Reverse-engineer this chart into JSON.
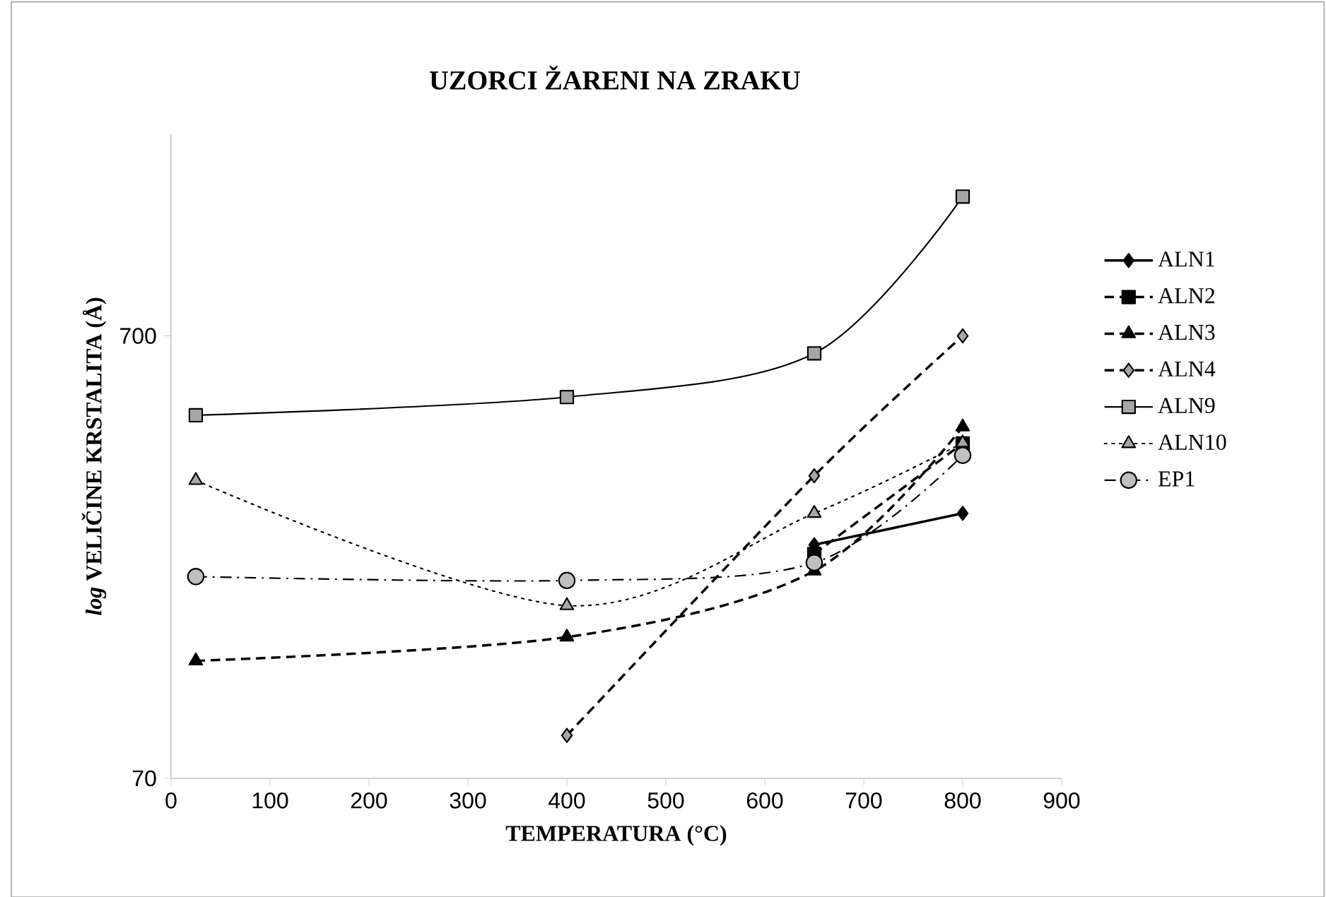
{
  "chart_data": {
    "type": "line",
    "title": "UZORCI ŽARENI NA ZRAKU",
    "xlabel": "TEMPERATURA (°C)",
    "ylabel": "*log* VELIČINE KRSTALITA (Å)",
    "xlim": [
      0,
      900
    ],
    "xticks": [
      0,
      100,
      200,
      300,
      400,
      500,
      600,
      700,
      800,
      900
    ],
    "ylim": [
      70,
      2000
    ],
    "yticks": [
      70,
      700
    ],
    "log": "y",
    "grid": false,
    "legend": "right",
    "series": [
      {
        "name": "ALN1",
        "color": "#000000",
        "marker": "diamond",
        "line_style": "solid",
        "x": [
          650,
          800
        ],
        "values": [
          236,
          278
        ]
      },
      {
        "name": "ALN2",
        "color": "#000000",
        "marker": "square",
        "line_style": "dashed",
        "x": [
          650,
          800
        ],
        "values": [
          225,
          400
        ]
      },
      {
        "name": "ALN3",
        "color": "#000000",
        "marker": "triangle",
        "line_style": "dashed",
        "x": [
          25,
          400,
          650,
          800
        ],
        "values": [
          129,
          146,
          206,
          436
        ]
      },
      {
        "name": "ALN4",
        "color": "#a6a6a6",
        "marker": "diamond",
        "line_style": "dashed",
        "x": [
          400,
          650,
          800
        ],
        "values": [
          87.5,
          338,
          700
        ]
      },
      {
        "name": "ALN9",
        "color": "#a6a6a6",
        "marker": "square",
        "line_style": "solid",
        "x": [
          25,
          400,
          650,
          800
        ],
        "values": [
          463,
          509,
          639,
          1445
        ]
      },
      {
        "name": "ALN10",
        "color": "#a6a6a6",
        "marker": "triangle",
        "line_style": "dotted",
        "x": [
          25,
          400,
          650,
          800
        ],
        "values": [
          330,
          172,
          278,
          401
        ]
      },
      {
        "name": "EP1",
        "color": "#bfbfbf",
        "marker": "circle",
        "line_style": "dashdot",
        "x": [
          25,
          400,
          650,
          800
        ],
        "values": [
          200,
          196,
          215,
          376
        ]
      }
    ]
  }
}
